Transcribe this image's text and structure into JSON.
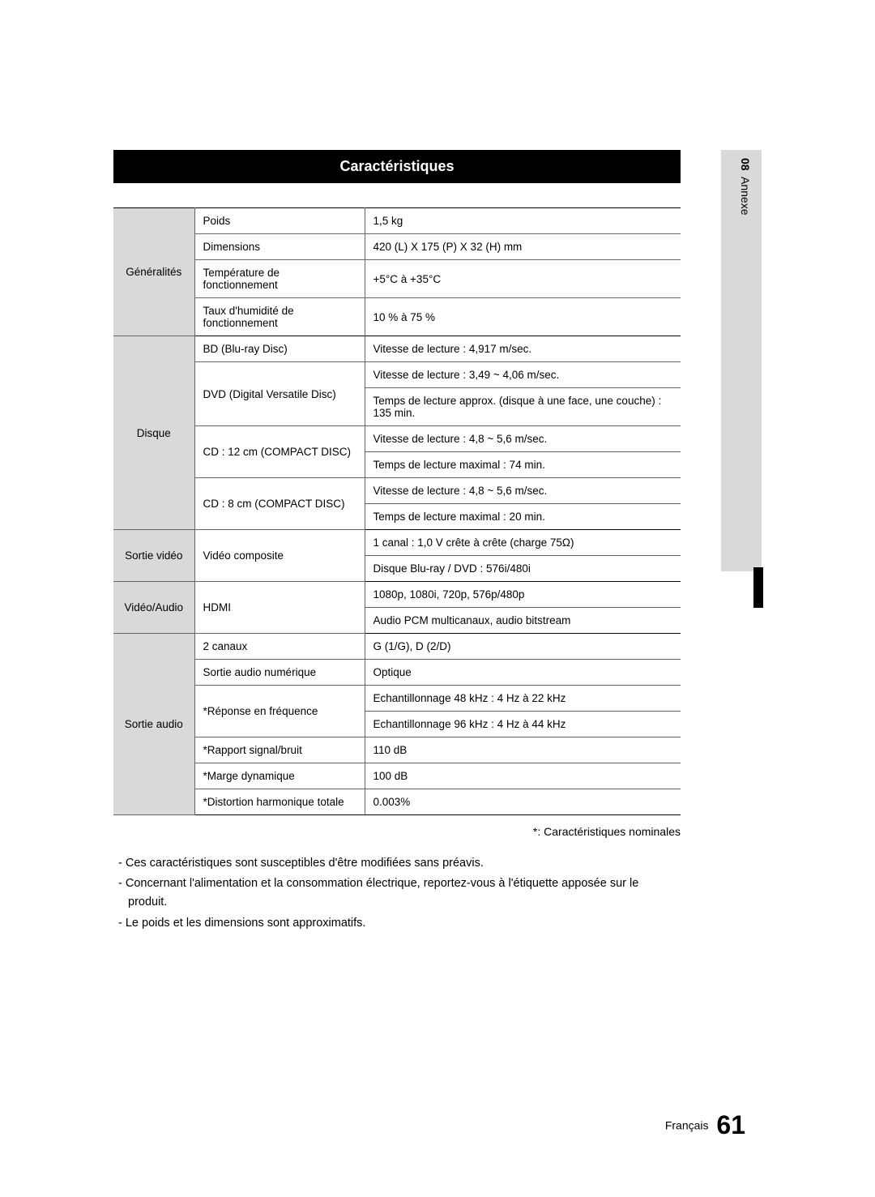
{
  "title": "Caractéristiques",
  "side_label_num": "08",
  "side_label_text": "Annexe",
  "table": {
    "categories": [
      {
        "name": "Généralités",
        "rows": [
          {
            "label": "Poids",
            "values": [
              "1,5 kg"
            ]
          },
          {
            "label": "Dimensions",
            "values": [
              "420 (L) X 175 (P) X 32 (H) mm"
            ]
          },
          {
            "label": "Température de fonctionnement",
            "values": [
              "+5°C à +35°C"
            ]
          },
          {
            "label": "Taux d'humidité de fonctionnement",
            "values": [
              "10 % à 75 %"
            ]
          }
        ]
      },
      {
        "name": "Disque",
        "rows": [
          {
            "label": "BD (Blu-ray Disc)",
            "values": [
              "Vitesse de lecture : 4,917 m/sec."
            ]
          },
          {
            "label": "DVD (Digital Versatile Disc)",
            "values": [
              "Vitesse de lecture : 3,49 ~ 4,06 m/sec.",
              "Temps de lecture approx. (disque à une face, une couche) : 135 min."
            ]
          },
          {
            "label": "CD : 12 cm (COMPACT DISC)",
            "values": [
              "Vitesse de lecture : 4,8 ~ 5,6 m/sec.",
              "Temps de lecture maximal : 74 min."
            ]
          },
          {
            "label": "CD : 8 cm (COMPACT DISC)",
            "values": [
              "Vitesse de lecture : 4,8 ~ 5,6 m/sec.",
              "Temps de lecture maximal : 20 min."
            ]
          }
        ]
      },
      {
        "name": "Sortie vidéo",
        "rows": [
          {
            "label": "Vidéo composite",
            "values": [
              "1 canal : 1,0 V crête à crête (charge 75Ω)",
              "Disque Blu-ray / DVD : 576i/480i"
            ]
          }
        ]
      },
      {
        "name": "Vidéo/Audio",
        "rows": [
          {
            "label": "HDMI",
            "values": [
              "1080p, 1080i, 720p, 576p/480p",
              "Audio PCM multicanaux, audio bitstream"
            ]
          }
        ]
      },
      {
        "name": "Sortie audio",
        "rows": [
          {
            "label": "2 canaux",
            "values": [
              "G (1/G), D (2/D)"
            ]
          },
          {
            "label": "Sortie audio numérique",
            "values": [
              "Optique"
            ]
          },
          {
            "label": "*Réponse en fréquence",
            "values": [
              "Echantillonnage 48 kHz : 4 Hz à 22 kHz",
              "Echantillonnage 96 kHz : 4 Hz à 44 kHz"
            ]
          },
          {
            "label": "*Rapport signal/bruit",
            "values": [
              "110 dB"
            ]
          },
          {
            "label": "*Marge dynamique",
            "values": [
              "100 dB"
            ]
          },
          {
            "label": "*Distortion harmonique totale",
            "values": [
              "0.003%"
            ]
          }
        ]
      }
    ]
  },
  "footnote_right": "*: Caractéristiques nominales",
  "notes": [
    "Ces caractéristiques sont susceptibles d'être modifiées sans préavis.",
    "Concernant l'alimentation et la consommation électrique, reportez-vous à l'étiquette apposée sur le produit.",
    "Le poids et les dimensions sont approximatifs."
  ],
  "footer_lang": "Français",
  "footer_page": "61",
  "colors": {
    "header_bg": "#000000",
    "header_text": "#ffffff",
    "cat_bg": "#d9d9d9",
    "border": "#666666",
    "side_bg": "#d9d9d9"
  }
}
